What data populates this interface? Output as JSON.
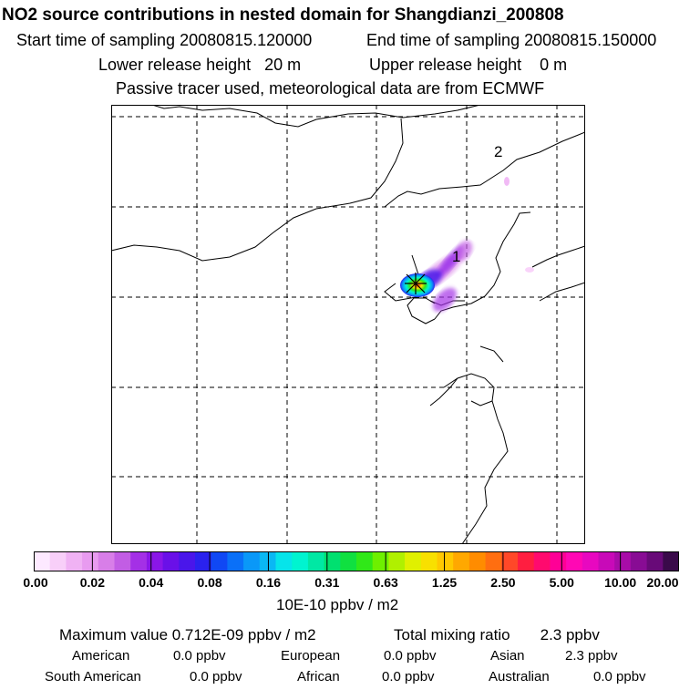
{
  "header": {
    "title": "NO2 source contributions in nested domain for Shangdianzi_200808",
    "start_label": "Start time of sampling 20080815.120000",
    "end_label": "End time of sampling 20080815.150000",
    "lower_label": "Lower release height   20 m",
    "upper_label": "Upper release height    0 m",
    "tracer_note": "Passive tracer used, meteorological data are from ECMWF"
  },
  "map": {
    "markers": [
      {
        "label": "1",
        "role": "receptor-site"
      },
      {
        "label": "2",
        "role": "receptor-site"
      }
    ],
    "source_marker": "asterisk-star-icon"
  },
  "colorbar": {
    "colors": [
      "#fde9ff",
      "#f8cff9",
      "#f0b2f4",
      "#e89bf0",
      "#d87ee8",
      "#c25de4",
      "#a430e6",
      "#8a16e8",
      "#6a10e8",
      "#4a16ea",
      "#2a22ee",
      "#1048f4",
      "#0a70f8",
      "#0a98f8",
      "#0ab8f4",
      "#06e4ea",
      "#00f4d0",
      "#00e8a4",
      "#00e070",
      "#10e040",
      "#30e818",
      "#6ef000",
      "#b0f000",
      "#e0f000",
      "#f8e000",
      "#ffc800",
      "#ffa800",
      "#ff8c00",
      "#ff6e10",
      "#ff4828",
      "#ff1e40",
      "#ff0a6e",
      "#ff0096",
      "#ff08b4",
      "#e808c0",
      "#c80ab8",
      "#a80ca8",
      "#880c94",
      "#680a78",
      "#3a0a4a"
    ],
    "ticks": [
      "0.00",
      "0.02",
      "0.04",
      "0.08",
      "0.16",
      "0.31",
      "0.63",
      "1.25",
      "2.50",
      "5.00",
      "10.00",
      "20.00"
    ],
    "unit": "10E-10 ppbv / m2"
  },
  "footer": {
    "max_label": "Maximum value  0.712E-09 ppbv / m2",
    "total_label": "Total mixing ratio       2.3 ppbv",
    "rows": [
      [
        {
          "name": "American",
          "value": "0.0 ppbv"
        },
        {
          "name": "European",
          "value": "0.0 ppbv"
        },
        {
          "name": "Asian",
          "value": "2.3 ppbv"
        }
      ],
      [
        {
          "name": "South American",
          "value": "0.0 ppbv"
        },
        {
          "name": "African",
          "value": "0.0 ppbv"
        },
        {
          "name": "Australian",
          "value": "0.0 ppbv"
        }
      ]
    ]
  }
}
